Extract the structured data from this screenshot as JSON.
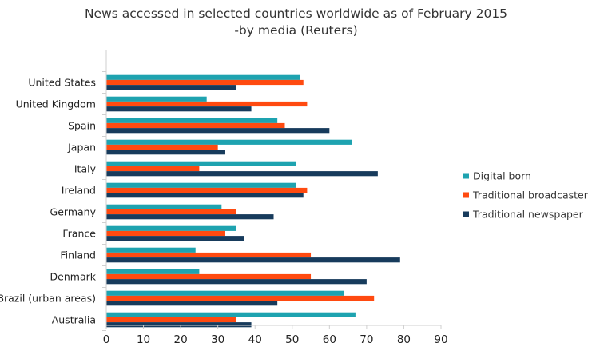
{
  "chart_data": {
    "type": "bar",
    "orientation": "horizontal",
    "title": "News accessed in selected countries worldwide as of February 2015",
    "subtitle": "-by media (Reuters)",
    "xlabel": "",
    "ylabel": "",
    "xlim": [
      0,
      90
    ],
    "xticks": [
      0,
      10,
      20,
      30,
      40,
      50,
      60,
      70,
      80,
      90
    ],
    "grid": false,
    "legend_position": "right",
    "categories": [
      "United States",
      "United Kingdom",
      "Spain",
      "Japan",
      "Italy",
      "Ireland",
      "Germany",
      "France",
      "Finland",
      "Denmark",
      "Brazil (urban areas)",
      "Australia"
    ],
    "series": [
      {
        "name": "Digital born",
        "color": "#1ea3b0",
        "values": [
          52,
          27,
          46,
          66,
          51,
          51,
          31,
          35,
          24,
          25,
          64,
          67
        ]
      },
      {
        "name": "Traditional broadcaster",
        "color": "#ff4a10",
        "values": [
          53,
          54,
          48,
          30,
          25,
          54,
          35,
          32,
          55,
          55,
          72,
          35
        ]
      },
      {
        "name": "Traditional newspaper",
        "color": "#173b5c",
        "values": [
          35,
          39,
          60,
          32,
          73,
          53,
          45,
          37,
          79,
          70,
          46,
          39
        ]
      }
    ]
  }
}
